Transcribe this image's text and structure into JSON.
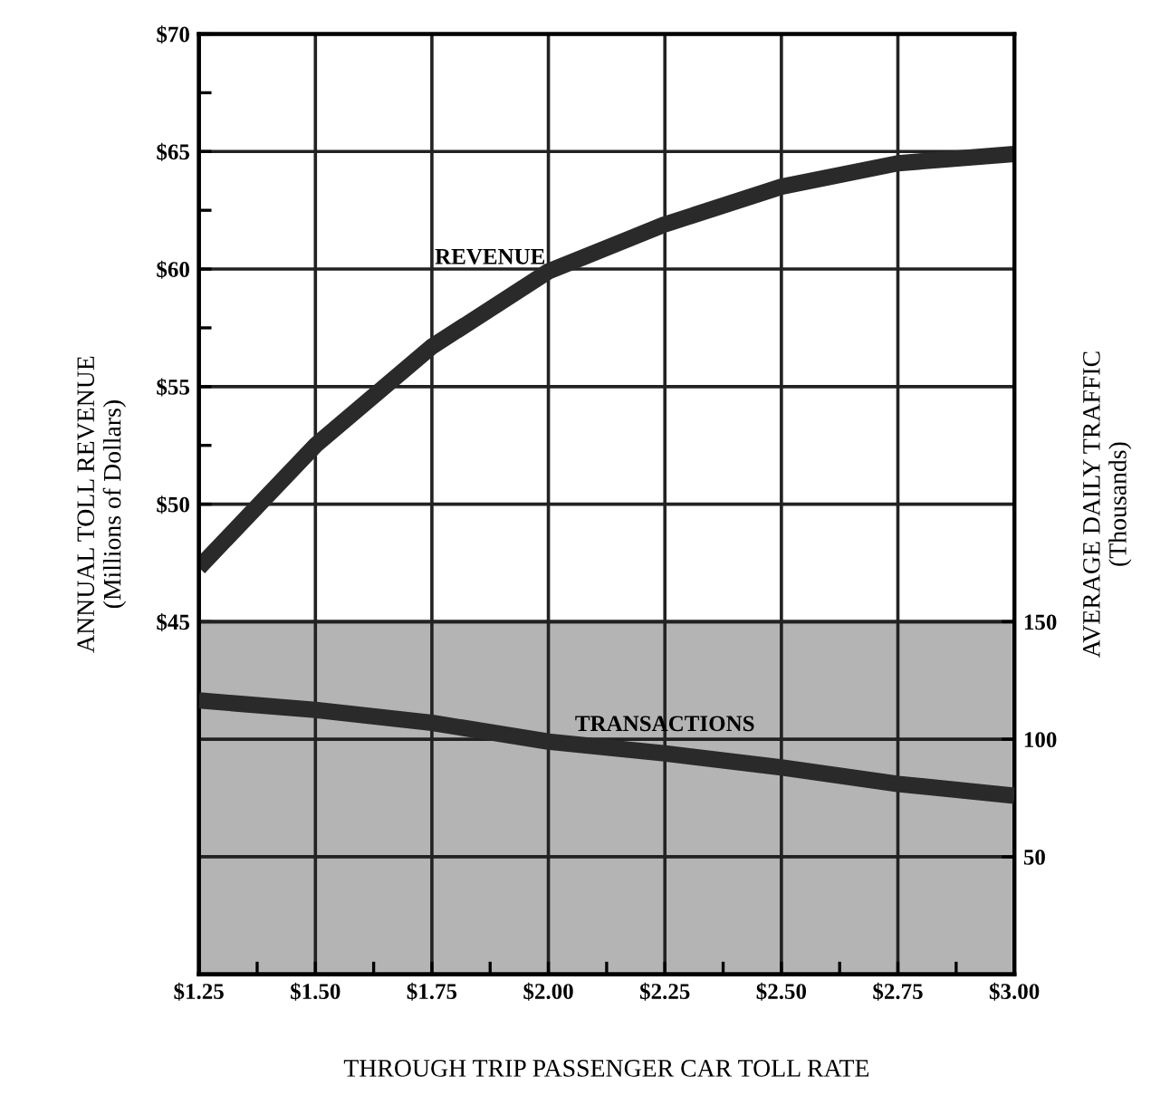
{
  "chart_data": {
    "type": "line",
    "xlabel": "THROUGH TRIP PASSENGER CAR TOLL RATE",
    "ylabel": "ANNUAL TOLL REVENUE\n(Millions of Dollars)",
    "y2label": "AVERAGE DAILY TRAFFIC\n(Thousands)",
    "x": [
      1.25,
      1.5,
      1.75,
      2.0,
      2.25,
      2.5,
      2.75,
      3.0
    ],
    "series": [
      {
        "name": "REVENUE",
        "color": "#2a2a2a",
        "values": [
          47.3,
          52.5,
          56.7,
          59.9,
          61.9,
          63.5,
          64.5,
          64.9
        ]
      },
      {
        "name": "TRANSACTIONS",
        "color": "#2a2a2a",
        "axis": "y2",
        "values": [
          116.5,
          112.5,
          107,
          99,
          94,
          88,
          81,
          76
        ]
      }
    ],
    "xlim": [
      1.25,
      3.0
    ],
    "xticks": [
      {
        "value": 1.25,
        "label": "$1.25"
      },
      {
        "value": 1.375,
        "label": null
      },
      {
        "value": 1.5,
        "label": "$1.50"
      },
      {
        "value": 1.625,
        "label": null
      },
      {
        "value": 1.75,
        "label": "$1.75"
      },
      {
        "value": 1.875,
        "label": null
      },
      {
        "value": 2.0,
        "label": "$2.00"
      },
      {
        "value": 2.125,
        "label": null
      },
      {
        "value": 2.25,
        "label": "$2.25"
      },
      {
        "value": 2.375,
        "label": null
      },
      {
        "value": 2.5,
        "label": "$2.50"
      },
      {
        "value": 2.625,
        "label": null
      },
      {
        "value": 2.75,
        "label": "$2.75"
      },
      {
        "value": 2.875,
        "label": null
      },
      {
        "value": 3.0,
        "label": "$3.00"
      }
    ],
    "ylim": [
      30,
      70
    ],
    "yticks": [
      {
        "value": 45,
        "label": "$45"
      },
      {
        "value": 47.5,
        "label": null
      },
      {
        "value": 50,
        "label": "$50"
      },
      {
        "value": 52.5,
        "label": null
      },
      {
        "value": 55,
        "label": "$55"
      },
      {
        "value": 57.5,
        "label": null
      },
      {
        "value": 60,
        "label": "$60"
      },
      {
        "value": 62.5,
        "label": null
      },
      {
        "value": 65,
        "label": "$65"
      },
      {
        "value": 67.5,
        "label": null
      },
      {
        "value": 70,
        "label": "$70"
      }
    ],
    "y2lim": [
      0,
      400
    ],
    "y2ticks": [
      50,
      100,
      150
    ],
    "bands": [
      {
        "axis": "y",
        "from": 30,
        "to": 45,
        "color": "#b4b4b4"
      }
    ],
    "grid": true,
    "legend": false,
    "marker": "none",
    "line_style": "solid"
  }
}
